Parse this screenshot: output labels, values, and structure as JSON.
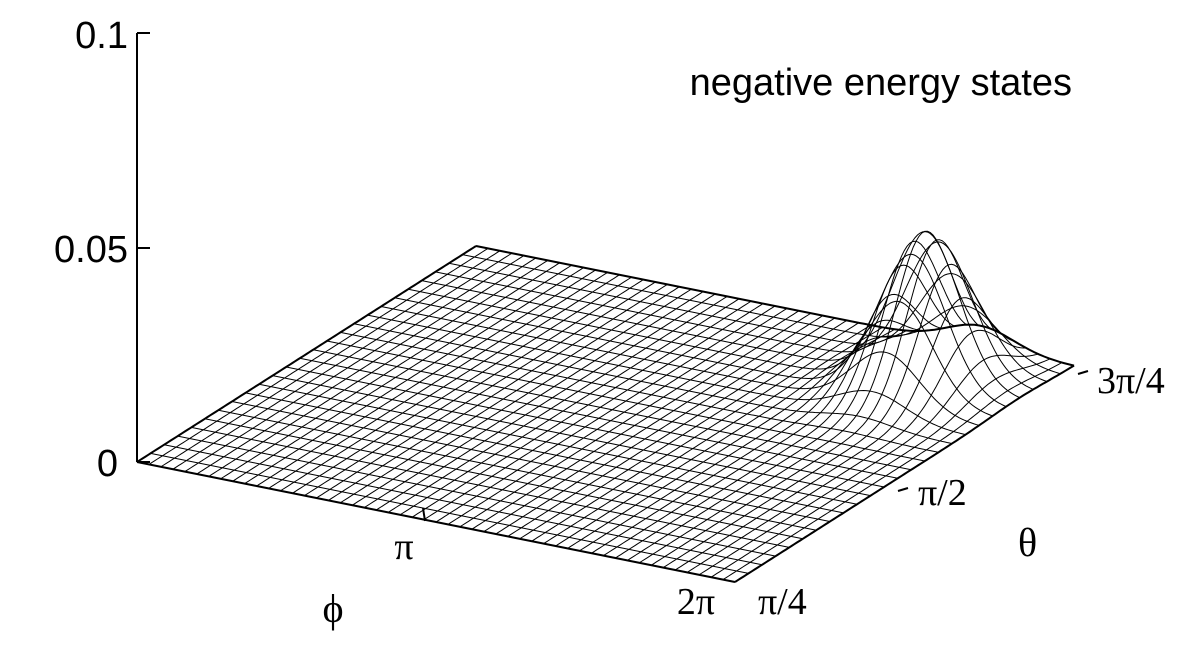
{
  "chart_data": {
    "type": "surface",
    "annotation": "negative energy states",
    "z_axis": {
      "range": [
        0,
        0.1
      ],
      "ticks": [
        {
          "value": 0,
          "label": "0"
        },
        {
          "value": 0.05,
          "label": "0.05"
        },
        {
          "value": 0.1,
          "label": "0.1"
        }
      ]
    },
    "phi_axis": {
      "label": "ϕ",
      "range": [
        "0",
        "2π"
      ],
      "ticks": [
        {
          "value": 3.14159,
          "label": "π"
        },
        {
          "value": 6.28318,
          "label": "2π"
        }
      ]
    },
    "theta_axis": {
      "label": "θ",
      "range": [
        "π/4",
        "3π/4"
      ],
      "ticks": [
        {
          "value": 0.7854,
          "label": "π/4"
        },
        {
          "value": 1.5708,
          "label": "π/2"
        },
        {
          "value": 2.3562,
          "label": "3π/4"
        }
      ]
    },
    "surface": {
      "baseline": 0.0,
      "peak": {
        "phi": 5.3,
        "theta": 2.1,
        "height": 0.035
      },
      "grid": {
        "phi_lines": 50,
        "theta_lines": 25
      }
    }
  }
}
